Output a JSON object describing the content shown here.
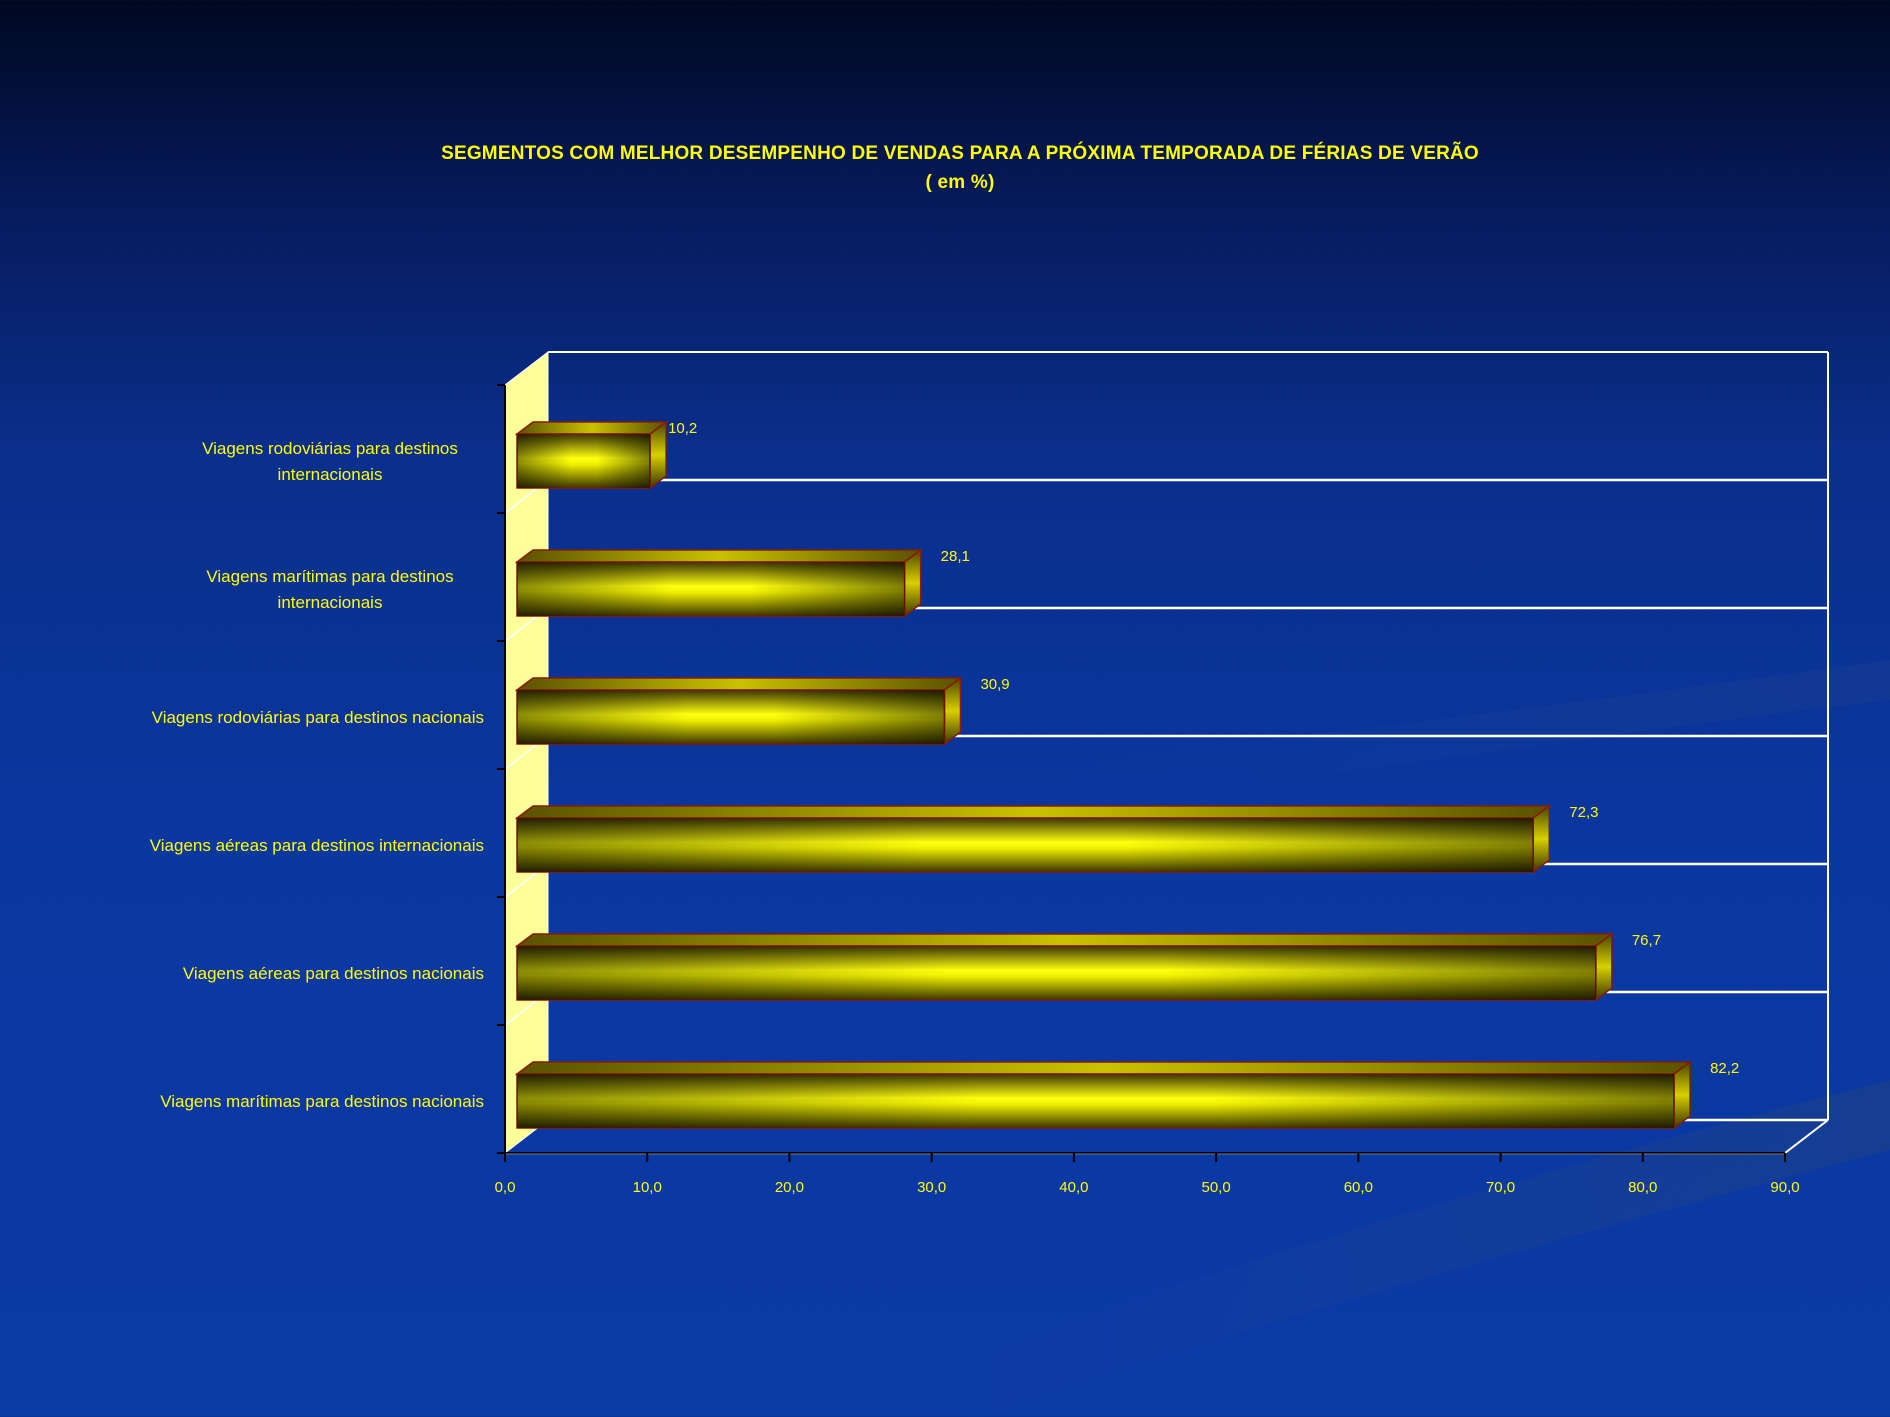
{
  "chart_data": {
    "type": "bar",
    "orientation": "horizontal",
    "title": "SEGMENTOS COM MELHOR DESEMPENHO DE VENDAS PARA A PRÓXIMA TEMPORADA DE FÉRIAS DE VERÃO",
    "subtitle": "( em %)",
    "categories": [
      [
        "Viagens rodoviárias para destinos",
        "internacionais"
      ],
      [
        "Viagens marítimas para destinos",
        "internacionais"
      ],
      [
        "Viagens rodoviárias para destinos nacionais"
      ],
      [
        "Viagens aéreas para destinos internacionais"
      ],
      [
        "Viagens aéreas para destinos nacionais"
      ],
      [
        "Viagens marítimas para destinos nacionais"
      ]
    ],
    "values": [
      10.2,
      28.1,
      30.9,
      72.3,
      76.7,
      82.2
    ],
    "value_labels": [
      "10,2",
      "28,1",
      "30,9",
      "72,3",
      "76,7",
      "82,2"
    ],
    "xlim": [
      0,
      90
    ],
    "x_ticks": [
      "0,0",
      "10,0",
      "20,0",
      "30,0",
      "40,0",
      "50,0",
      "60,0",
      "70,0",
      "80,0",
      "90,0"
    ],
    "grid": true,
    "legend": "none",
    "colors": {
      "bar": "#e8e800",
      "bar_dark": "#4a4500",
      "bar_edge": "#8a1a00",
      "text": "#ffff00",
      "grid": "#ffffff",
      "side_wall": "#ffff99"
    }
  }
}
